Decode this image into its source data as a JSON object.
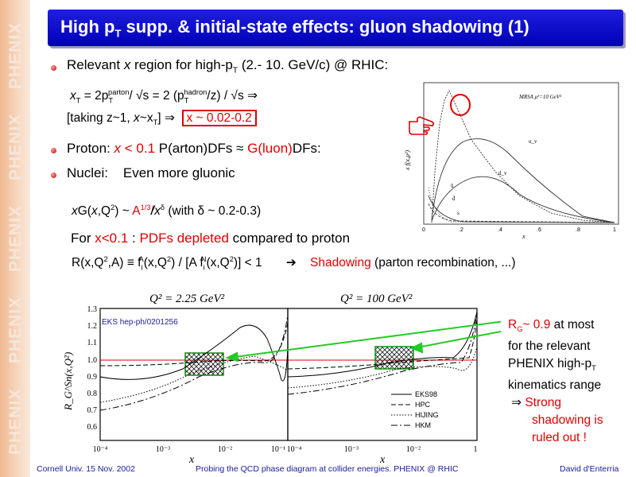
{
  "sidebar": {
    "watermark": "PHENIX"
  },
  "title": {
    "main": "High p",
    "sub": "T",
    "rest": " supp. & initial-state effects: gluon shadowing (1)"
  },
  "bullet1": {
    "a": "Relevant ",
    "x": "x",
    "b": " region for high-p",
    "sub": "T",
    "c": " (2.- 10. GeV/c) @ RHIC:"
  },
  "formula1": {
    "text": "x",
    "sub1": "T",
    "mid1": " = 2p",
    "sub2": "T",
    "sup2": "parton",
    "mid2": "/ √s = 2 (p",
    "sub3": "T",
    "sup3": "hadron",
    "end": "/z) / √s ⇒"
  },
  "formula2": {
    "text": "[taking z~1, ",
    "x": "x",
    "mid": "~x",
    "sub": "T",
    "end": "]  ⇒",
    "boxed": "x ~ 0.02-0.2"
  },
  "bullet2": {
    "a": "Proton: ",
    "b": "x < 0.1",
    "c": " P(arton)DFs ≈ ",
    "d": "G(luon)",
    "e": "DFs:"
  },
  "bullet3": {
    "a": "Nuclei:",
    "b": "Even more gluonic"
  },
  "formula3": {
    "a": "x",
    "b": "G(",
    "c": "x",
    "d": ",Q",
    "sup": "2",
    "e": ") ~ ",
    "f": "A",
    "fsup": "1/3",
    "g": "/x",
    "gsup": "δ",
    "h": " (with δ ~ 0.2-0.3)"
  },
  "line4": {
    "a": "For ",
    "b": "x<0.1",
    "c": " : ",
    "d": "PDFs depleted",
    "e": " compared to proton"
  },
  "line5": {
    "a": "R(x,Q",
    "sup1": "2",
    "b": ",A) ≡ f",
    "sub1": "i",
    "sup2": "A",
    "c": "(x,Q",
    "sup3": "2",
    "d": ") / [A f",
    "sub2": "i",
    "sup4": "N",
    "e": "(x,Q",
    "sup5": "2",
    "f": ")] < 1",
    "arrow": "➔",
    "g": "Shadowing",
    "h": "  (parton recombination, ...)"
  },
  "pdf_plot": {
    "legend": "MRSA  μ²=10 GeV²",
    "curve_labels": [
      "u_v",
      "d_v",
      "ū",
      "d̄",
      "s"
    ],
    "xlabel": "x",
    "ylabel": "x f(x,μ²)",
    "xticks": [
      "0",
      ".2",
      ".4",
      ".6",
      ".8",
      "1"
    ]
  },
  "shadow_plot": {
    "panels": [
      "Q² = 2.25 GeV²",
      "Q² = 100 GeV²"
    ],
    "ref": "EKS hep-ph/0201256",
    "ylabel": "R_G^Sn(x,Q²)",
    "xlabel": "x",
    "yticks": [
      "1.3",
      "1.2",
      "1.1",
      "1.0",
      "0.9",
      "0.8",
      "0.7",
      "0.6"
    ],
    "xticks": [
      "10⁻⁴",
      "10⁻³",
      "10⁻²",
      "10⁻¹",
      "1"
    ],
    "legend": [
      "EKS98",
      "HPC",
      "HIJING",
      "HKM"
    ]
  },
  "annotation": {
    "a": "R",
    "asub": "G",
    "b": "~ 0.9",
    "c": " at most",
    "l2": "for the relevant",
    "l3a": "PHENIX high-p",
    "l3sub": "T",
    "l4": "kinematics range",
    "arrow": "⇒",
    "l5": "Strong",
    "l6": "shadowing is",
    "l7": "ruled out !"
  },
  "footer": {
    "left": "Cornell Univ. 15 Nov.  2002",
    "center": "Probing the QCD phase diagram at collider energies. PHENIX @ RHIC",
    "right": "David d'Enterria"
  }
}
